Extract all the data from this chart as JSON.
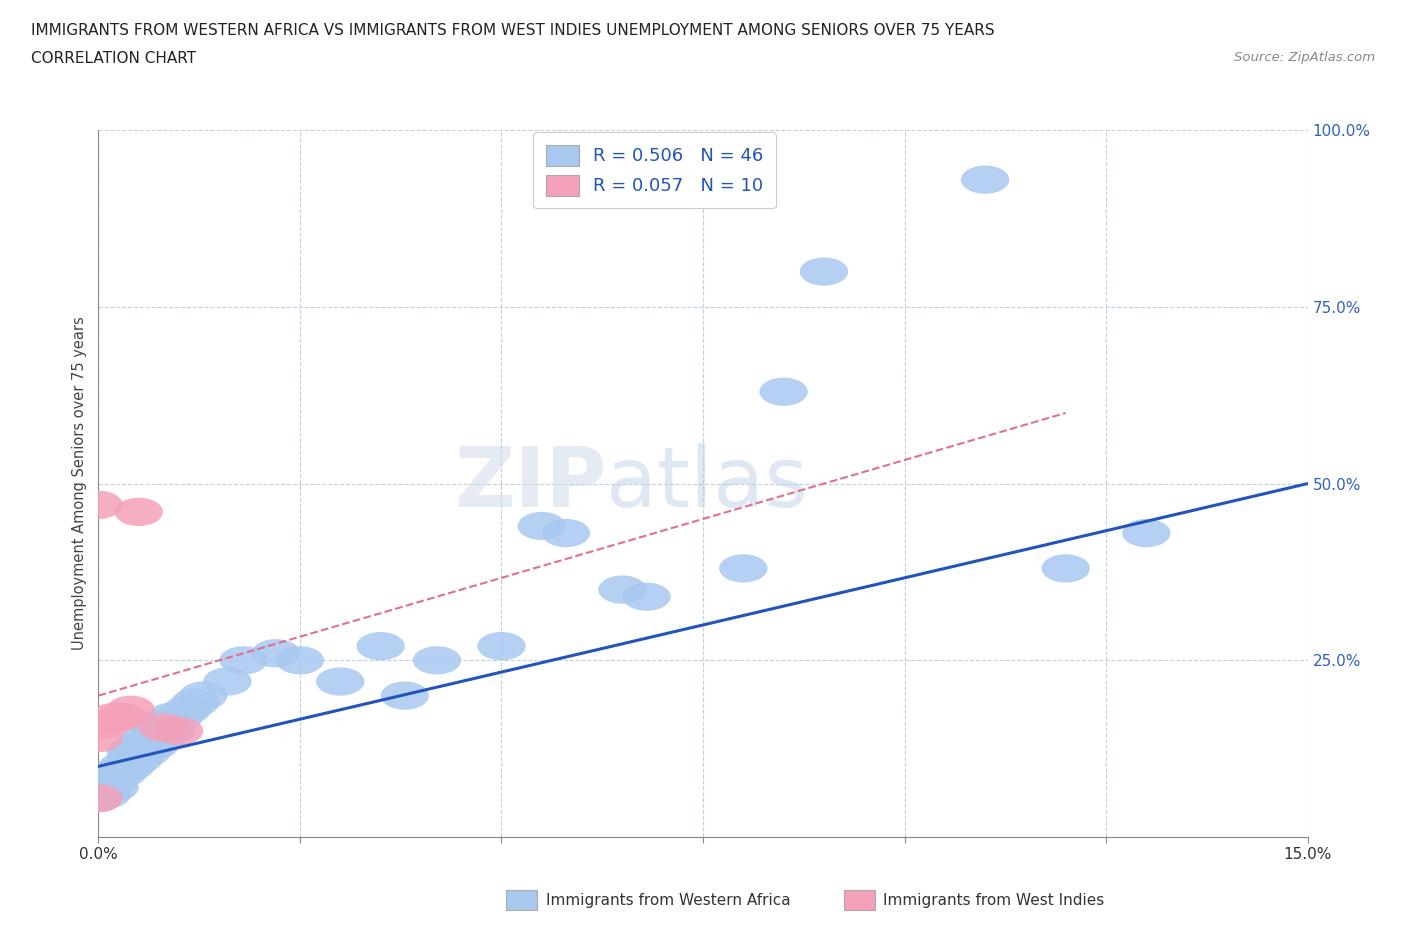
{
  "title_line1": "IMMIGRANTS FROM WESTERN AFRICA VS IMMIGRANTS FROM WEST INDIES UNEMPLOYMENT AMONG SENIORS OVER 75 YEARS",
  "title_line2": "CORRELATION CHART",
  "source": "Source: ZipAtlas.com",
  "ylabel": "Unemployment Among Seniors over 75 years",
  "xlim": [
    0.0,
    0.15
  ],
  "ylim": [
    0.0,
    1.0
  ],
  "blue_color": "#a8c8f0",
  "pink_color": "#f4a0b8",
  "blue_line_color": "#2255bb",
  "pink_line_color": "#e07090",
  "R_blue": 0.506,
  "N_blue": 46,
  "R_pink": 0.057,
  "N_pink": 10,
  "legend_label_blue": "Immigrants from Western Africa",
  "legend_label_pink": "Immigrants from West Indies",
  "watermark_zip": "ZIP",
  "watermark_atlas": "atlas",
  "background_color": "#ffffff",
  "grid_color": "#c0d0e0",
  "blue_line_x": [
    0.0,
    0.15
  ],
  "blue_line_y": [
    0.1,
    0.5
  ],
  "pink_line_x": [
    0.0,
    0.12
  ],
  "pink_line_y": [
    0.2,
    0.6
  ],
  "blue_scatter_x": [
    0.0,
    0.0,
    0.001,
    0.001,
    0.001,
    0.002,
    0.002,
    0.002,
    0.003,
    0.003,
    0.004,
    0.004,
    0.004,
    0.005,
    0.005,
    0.006,
    0.006,
    0.007,
    0.007,
    0.008,
    0.008,
    0.009,
    0.009,
    0.01,
    0.011,
    0.012,
    0.013,
    0.016,
    0.018,
    0.022,
    0.025,
    0.03,
    0.035,
    0.038,
    0.042,
    0.05,
    0.055,
    0.058,
    0.065,
    0.068,
    0.08,
    0.085,
    0.09,
    0.11,
    0.12,
    0.13
  ],
  "blue_scatter_y": [
    0.055,
    0.06,
    0.06,
    0.07,
    0.08,
    0.07,
    0.08,
    0.09,
    0.09,
    0.1,
    0.1,
    0.11,
    0.12,
    0.11,
    0.13,
    0.12,
    0.14,
    0.13,
    0.15,
    0.14,
    0.16,
    0.15,
    0.17,
    0.17,
    0.18,
    0.19,
    0.2,
    0.22,
    0.25,
    0.26,
    0.25,
    0.22,
    0.27,
    0.2,
    0.25,
    0.27,
    0.44,
    0.43,
    0.35,
    0.34,
    0.38,
    0.63,
    0.8,
    0.93,
    0.38,
    0.43
  ],
  "pink_scatter_x": [
    0.0,
    0.0,
    0.0,
    0.001,
    0.002,
    0.003,
    0.004,
    0.005,
    0.008,
    0.01
  ],
  "pink_scatter_y": [
    0.055,
    0.14,
    0.47,
    0.16,
    0.17,
    0.17,
    0.18,
    0.46,
    0.155,
    0.15
  ]
}
